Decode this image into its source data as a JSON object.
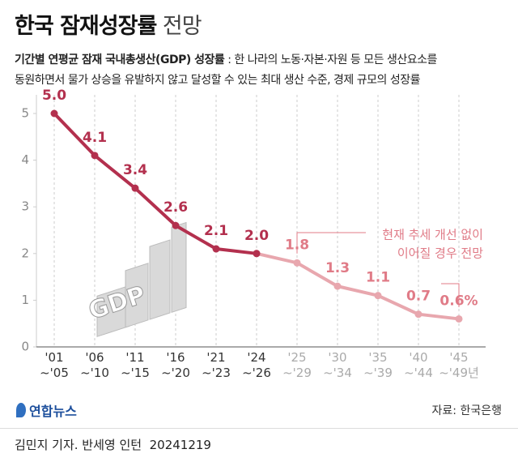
{
  "chart_data": {
    "type": "line",
    "title": "한국 잠재성장률",
    "title_suffix": "전망",
    "subtitle_label": "기간별 연평균 잠재 국내총생산(GDP) 성장률",
    "description": [
      ": 한 나라의 노동·자본·자원 등 모든 생산요소를",
      "동원하면서 물가 상승을 유발하지 않고 달성할 수 있는 최대 생산 수준, 경제 규모의 성장률"
    ],
    "categories": [
      "'01\n~'05",
      "'06\n~'10",
      "'11\n~'15",
      "'16\n~'20",
      "'21\n~'23",
      "'24\n~'26",
      "'25\n~'29",
      "'30\n~'34",
      "'35\n~'39",
      "'40\n~'44",
      "'45\n~'49년"
    ],
    "category_colors": [
      "#333333",
      "#333333",
      "#333333",
      "#333333",
      "#333333",
      "#333333",
      "#aaaaaa",
      "#aaaaaa",
      "#aaaaaa",
      "#aaaaaa",
      "#aaaaaa"
    ],
    "series": [
      {
        "color": "#b3304e",
        "values": [
          5.0,
          4.1,
          3.4,
          2.6,
          2.1,
          2.0,
          null,
          null,
          null,
          null,
          null
        ],
        "value_labels": [
          "5.0",
          "4.1",
          "3.4",
          "2.6",
          "2.1",
          "2.0",
          null,
          null,
          null,
          null,
          null
        ]
      },
      {
        "color": "#e8a7ae",
        "label_color": "#e07b87",
        "values": [
          null,
          null,
          null,
          null,
          null,
          2.0,
          1.8,
          1.3,
          1.1,
          0.7,
          0.6
        ],
        "value_labels": [
          null,
          null,
          null,
          null,
          null,
          null,
          "1.8",
          "1.3",
          "1.1",
          "0.7",
          "0.6%"
        ]
      }
    ],
    "ylim": [
      0,
      5.4
    ],
    "yticks": [
      0,
      1,
      2,
      3,
      4,
      5
    ],
    "grid": true,
    "annotation": [
      "현재 추세 개선 없이",
      "이어질 경우 전망"
    ],
    "icon_text": "GDP",
    "source": "자료: 한국은행",
    "logo": "연합뉴스",
    "credit": "김민지 기자. 반세영 인턴  20241219"
  }
}
